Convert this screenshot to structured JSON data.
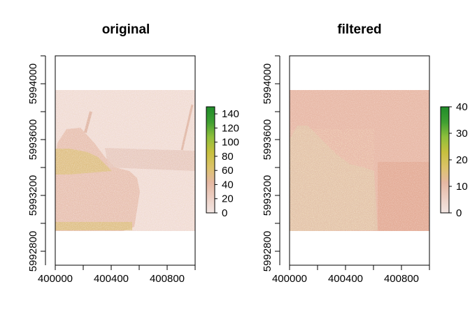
{
  "chart_data": [
    {
      "type": "heatmap",
      "title": "original",
      "xlabel": "",
      "ylabel": "",
      "xlim": [
        400000,
        401000
      ],
      "ylim": [
        5992700,
        5994200
      ],
      "extent": {
        "xmin": 400000,
        "xmax": 401000,
        "ymin": 5992980,
        "ymax": 5994000
      },
      "x_ticks": [
        400000,
        400400,
        400800
      ],
      "x_minor_ticks": [
        400200,
        400600,
        401000
      ],
      "y_ticks": [
        5992800,
        5993200,
        5993600,
        5994000
      ],
      "y_minor_ticks": [
        5993000,
        5993400,
        5993800
      ],
      "legend": {
        "placement": "right",
        "ticks": [
          0,
          20,
          40,
          60,
          80,
          100,
          120,
          140
        ],
        "min": 0,
        "max": 150
      }
    },
    {
      "type": "heatmap",
      "title": "filtered",
      "xlabel": "",
      "ylabel": "",
      "xlim": [
        400000,
        401000
      ],
      "ylim": [
        5992700,
        5994200
      ],
      "extent": {
        "xmin": 400000,
        "xmax": 401000,
        "ymin": 5992980,
        "ymax": 5994000
      },
      "x_ticks": [
        400000,
        400400,
        400800
      ],
      "x_minor_ticks": [
        400200,
        400600,
        401000
      ],
      "y_ticks": [
        5992800,
        5993200,
        5993600,
        5994000
      ],
      "y_minor_ticks": [
        5993000,
        5993400,
        5993800
      ],
      "legend": {
        "placement": "right",
        "ticks": [
          0,
          10,
          20,
          30,
          40
        ],
        "min": 0,
        "max": 40
      }
    }
  ],
  "colors": {
    "ramp": [
      "#f2e6e3",
      "#eccfc4",
      "#e5b8a2",
      "#dcc36a",
      "#c7c03e",
      "#8fbf3c",
      "#3f9f32",
      "#1f8c2a"
    ],
    "original_background": "#f1dcd6",
    "filtered_background": "#e7b8a6",
    "original_dense": "#e6bcad",
    "filtered_band": "#e1ab97",
    "yellow_speckle": "#d9b94a"
  }
}
